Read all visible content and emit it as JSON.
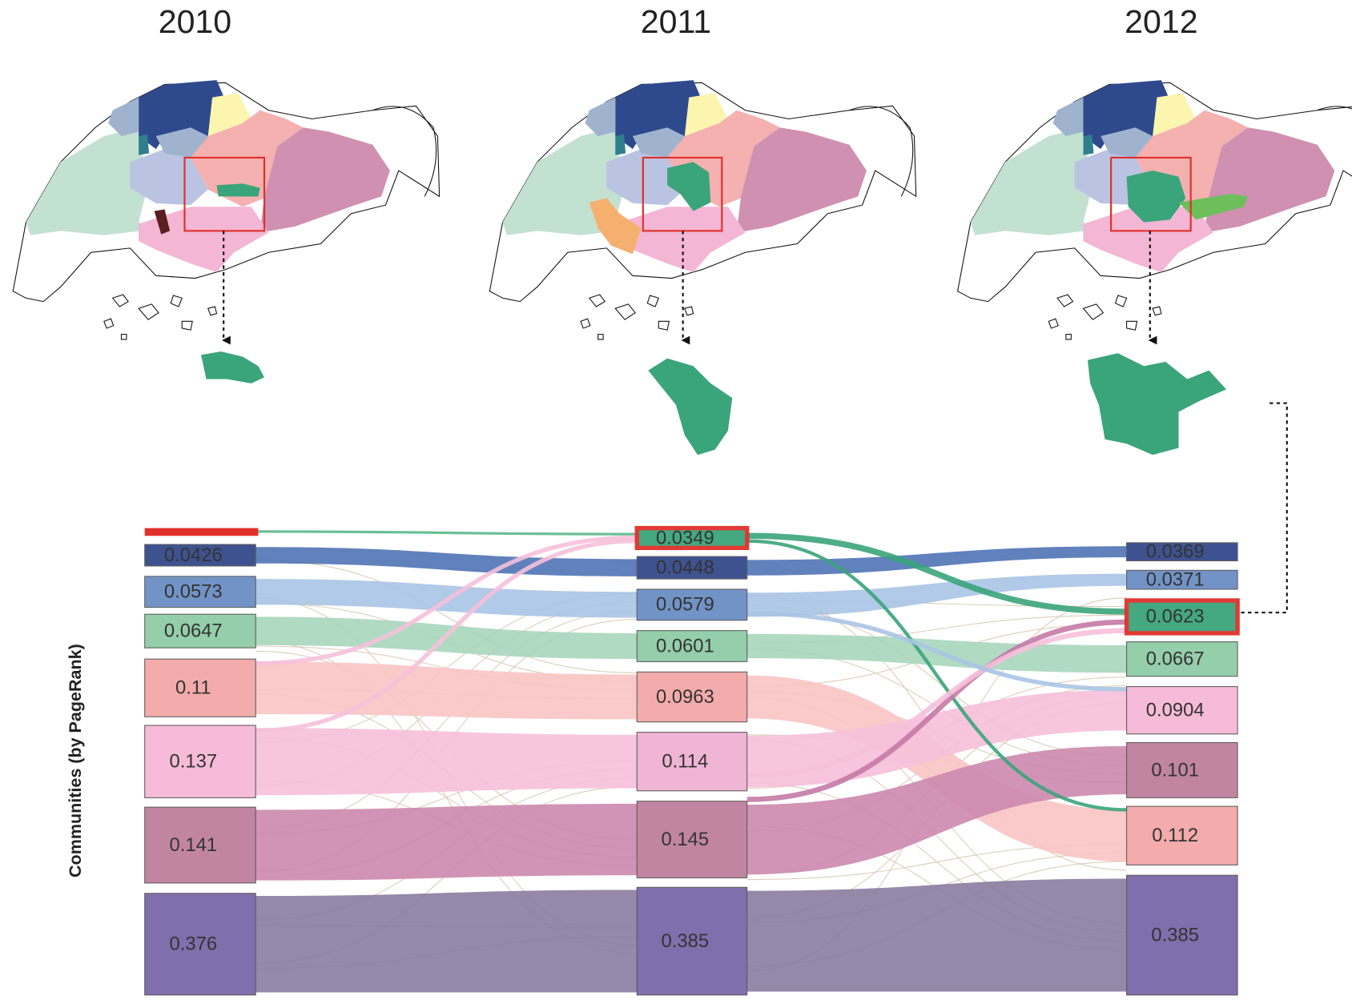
{
  "figure": {
    "y_axis_label": "Communities (by PageRank)",
    "columns": [
      {
        "year": "2010",
        "nodes": [
          {
            "value": 0.0426,
            "color": "#34498a"
          },
          {
            "value": 0.0573,
            "color": "#6b8ec4"
          },
          {
            "value": 0.0647,
            "color": "#8fcca6"
          },
          {
            "value": 0.11,
            "color": "#f4a7a7"
          },
          {
            "value": 0.137,
            "color": "#f6b8d6"
          },
          {
            "value": 0.141,
            "color": "#be7f9c"
          },
          {
            "value": 0.376,
            "color": "#7b67a8"
          }
        ]
      },
      {
        "year": "2011",
        "nodes": [
          {
            "value": 0.0349,
            "color": "#3aa47a",
            "highlighted": true
          },
          {
            "value": 0.0448,
            "color": "#34498a"
          },
          {
            "value": 0.0579,
            "color": "#6b8ec4"
          },
          {
            "value": 0.0601,
            "color": "#8fcca6"
          },
          {
            "value": 0.0963,
            "color": "#f4a7a7"
          },
          {
            "value": 0.114,
            "color": "#f0b0d2"
          },
          {
            "value": 0.145,
            "color": "#be7f9c"
          },
          {
            "value": 0.385,
            "color": "#7b67a8"
          }
        ]
      },
      {
        "year": "2012",
        "nodes": [
          {
            "value": 0.0369,
            "color": "#34498a"
          },
          {
            "value": 0.0371,
            "color": "#6b8ec4"
          },
          {
            "value": 0.0623,
            "color": "#3aa47a",
            "highlighted": true
          },
          {
            "value": 0.0667,
            "color": "#8fcca6"
          },
          {
            "value": 0.0904,
            "color": "#f6b8d6"
          },
          {
            "value": 0.101,
            "color": "#be7f9c"
          },
          {
            "value": 0.112,
            "color": "#f4a7a7"
          },
          {
            "value": 0.385,
            "color": "#7b67a8"
          }
        ]
      }
    ]
  }
}
